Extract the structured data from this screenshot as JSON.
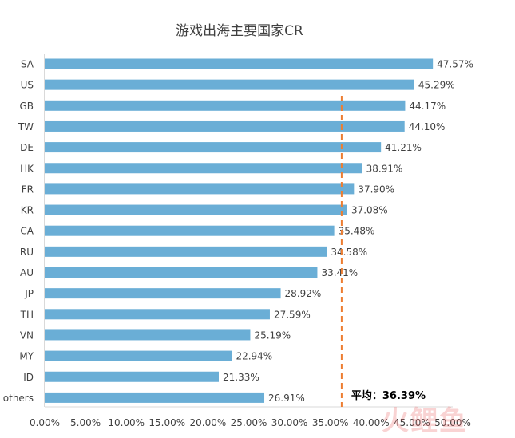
{
  "chart_data": {
    "type": "bar",
    "orientation": "horizontal",
    "title": "游戏出海主要国家CR",
    "categories": [
      "SA",
      "US",
      "GB",
      "TW",
      "DE",
      "HK",
      "FR",
      "KR",
      "CA",
      "RU",
      "AU",
      "JP",
      "TH",
      "VN",
      "MY",
      "ID",
      "others"
    ],
    "values": [
      47.57,
      45.29,
      44.17,
      44.1,
      41.21,
      38.91,
      37.9,
      37.08,
      35.48,
      34.58,
      33.41,
      28.92,
      27.59,
      25.19,
      22.94,
      21.33,
      26.91
    ],
    "value_labels": [
      "47.57%",
      "45.29%",
      "44.17%",
      "44.10%",
      "41.21%",
      "38.91%",
      "37.90%",
      "37.08%",
      "35.48%",
      "34.58%",
      "33.41%",
      "28.92%",
      "27.59%",
      "25.19%",
      "22.94%",
      "21.33%",
      "26.91%"
    ],
    "xlim": [
      0,
      50
    ],
    "x_ticks": [
      0,
      5,
      10,
      15,
      20,
      25,
      30,
      35,
      40,
      45,
      50
    ],
    "x_tick_labels": [
      "0.00%",
      "5.00%",
      "10.00%",
      "15.00%",
      "20.00%",
      "25.00%",
      "30.00%",
      "35.00%",
      "40.00%",
      "45.00%",
      "50.00%"
    ],
    "grid": false,
    "bar_color": "#6aaed6",
    "reference_line": {
      "value": 36.39,
      "label": "平均：36.39%",
      "color": "#ed7d31",
      "style": "dashed"
    },
    "watermark": "火鲤鱼"
  }
}
